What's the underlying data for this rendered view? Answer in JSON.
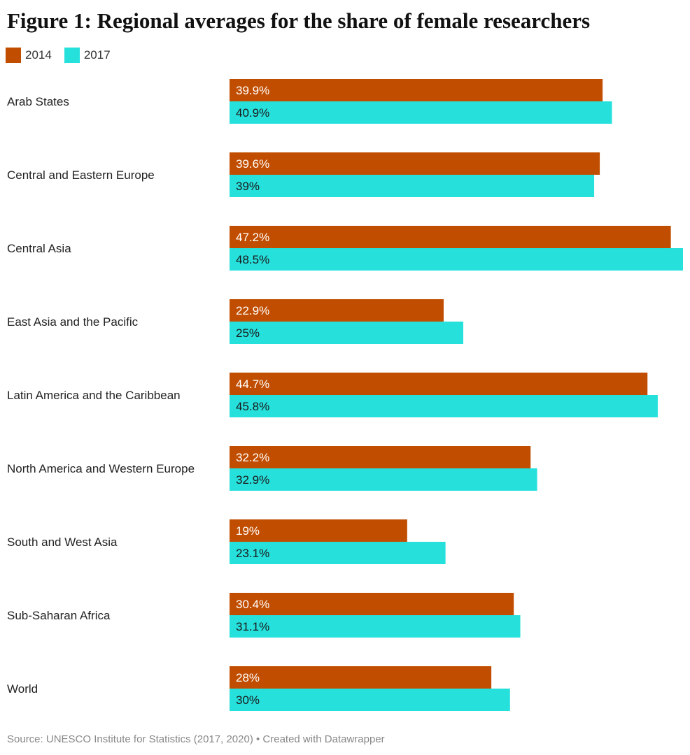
{
  "chart_data": {
    "type": "bar",
    "orientation": "horizontal",
    "title": "Figure 1: Regional averages for the share of female researchers",
    "categories": [
      "Arab States",
      "Central and Eastern Europe",
      "Central Asia",
      "East Asia and the Pacific",
      "Latin America and the Caribbean",
      "North America and Western Europe",
      "South and West Asia",
      "Sub-Saharan Africa",
      "World"
    ],
    "series": [
      {
        "name": "2014",
        "color": "#c14e00",
        "values": [
          39.9,
          39.6,
          47.2,
          22.9,
          44.7,
          32.2,
          19,
          30.4,
          28
        ],
        "labels": [
          "39.9%",
          "39.6%",
          "47.2%",
          "22.9%",
          "44.7%",
          "32.2%",
          "19%",
          "30.4%",
          "28%"
        ]
      },
      {
        "name": "2017",
        "color": "#26e0dc",
        "values": [
          40.9,
          39,
          48.5,
          25,
          45.8,
          32.9,
          23.1,
          31.1,
          30
        ],
        "labels": [
          "40.9%",
          "39%",
          "48.5%",
          "25%",
          "45.8%",
          "32.9%",
          "23.1%",
          "31.1%",
          "30%"
        ]
      }
    ],
    "xlim": [
      0,
      48.5
    ],
    "legend": "top-left",
    "grid": false,
    "source": "Source: UNESCO Institute for Statistics (2017, 2020) • Created with Datawrapper"
  }
}
